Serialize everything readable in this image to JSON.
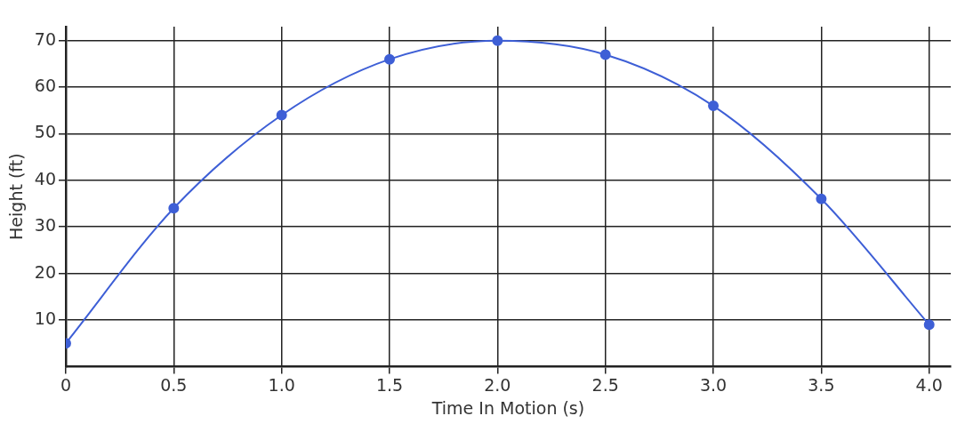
{
  "chart_data": {
    "type": "line",
    "xlabel": "Time In Motion (s)",
    "ylabel": "Height (ft)",
    "x": [
      0,
      0.5,
      1,
      1.5,
      2,
      2.5,
      3,
      3.5,
      4
    ],
    "series": [
      {
        "color": "#3e5fd6",
        "values": [
          5,
          34,
          54,
          66,
          70,
          67,
          56,
          36,
          9
        ]
      }
    ],
    "xlim": [
      0,
      4.1
    ],
    "xticks": [
      0,
      0.5,
      {
        "value": 1,
        "label": "1.0"
      },
      1.5,
      {
        "value": 2,
        "label": "2.0"
      },
      2.5,
      {
        "value": 3,
        "label": "3.0"
      },
      3.5,
      {
        "value": 4,
        "label": "4.0"
      }
    ],
    "ylim": [
      0,
      73
    ],
    "yticks": [
      10,
      20,
      30,
      40,
      50,
      60,
      70
    ],
    "grid": true,
    "marker": "circle",
    "line_style": "solid",
    "legend": false
  }
}
